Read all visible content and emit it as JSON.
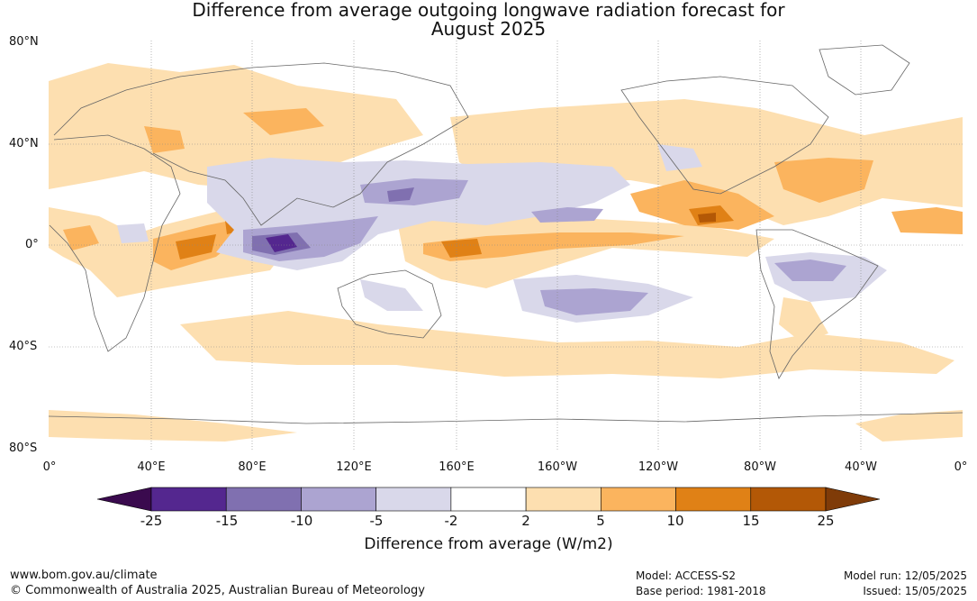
{
  "title": {
    "line1": "Difference from average outgoing longwave radiation forecast for",
    "line2": "August 2025"
  },
  "map": {
    "lat_labels": [
      "80°N",
      "40°N",
      "0°",
      "40°S",
      "80°S"
    ],
    "lon_labels": [
      "0°",
      "40°E",
      "80°E",
      "120°E",
      "160°E",
      "160°W",
      "120°W",
      "80°W",
      "40°W",
      "0°"
    ],
    "grid": true
  },
  "colorbar": {
    "label": "Difference from average (W/m2)",
    "ticks": [
      "-25",
      "-15",
      "-10",
      "-5",
      "-2",
      "2",
      "5",
      "10",
      "15",
      "25"
    ],
    "colors": [
      "#3a0a4e",
      "#54278f",
      "#8070b0",
      "#aca4d1",
      "#d9d8ea",
      "#ffffff",
      "#fddfb0",
      "#fbb45e",
      "#e08116",
      "#b35806",
      "#7f3b08"
    ]
  },
  "footer": {
    "url": "www.bom.gov.au/climate",
    "copyright": "© Commonwealth of Australia 2025, Australian Bureau of Meteorology",
    "model": "Model: ACCESS-S2",
    "base_period": "Base period: 1981-2018",
    "model_run": "Model run: 12/05/2025",
    "issued": "Issued: 15/05/2025"
  }
}
